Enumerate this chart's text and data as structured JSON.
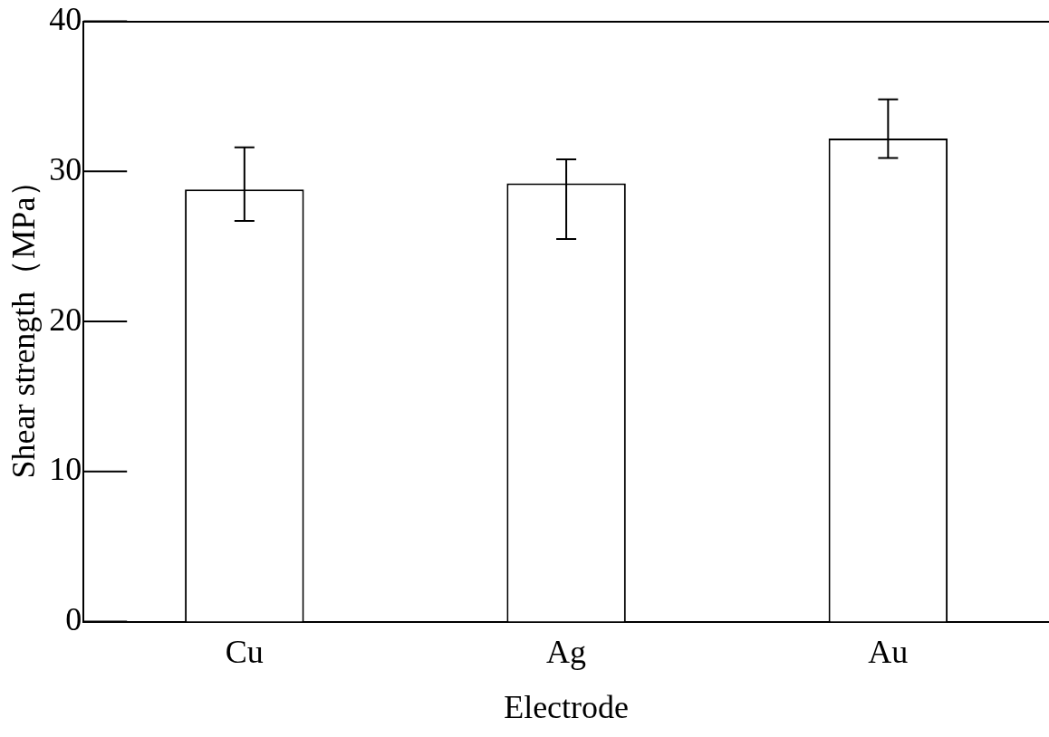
{
  "chart_data": {
    "type": "bar",
    "xlabel": "Electrode",
    "ylabel": "Shear strength（MPa）",
    "categories": [
      "Cu",
      "Ag",
      "Au"
    ],
    "values": [
      28.8,
      29.2,
      32.2
    ],
    "errors": [
      [
        26.7,
        31.6
      ],
      [
        25.5,
        30.8
      ],
      [
        30.9,
        34.8
      ]
    ],
    "color": "#ffffff",
    "ylim": [
      0,
      40
    ],
    "yticks": [
      0,
      10,
      20,
      30,
      40
    ],
    "grid": false,
    "legend": false
  }
}
